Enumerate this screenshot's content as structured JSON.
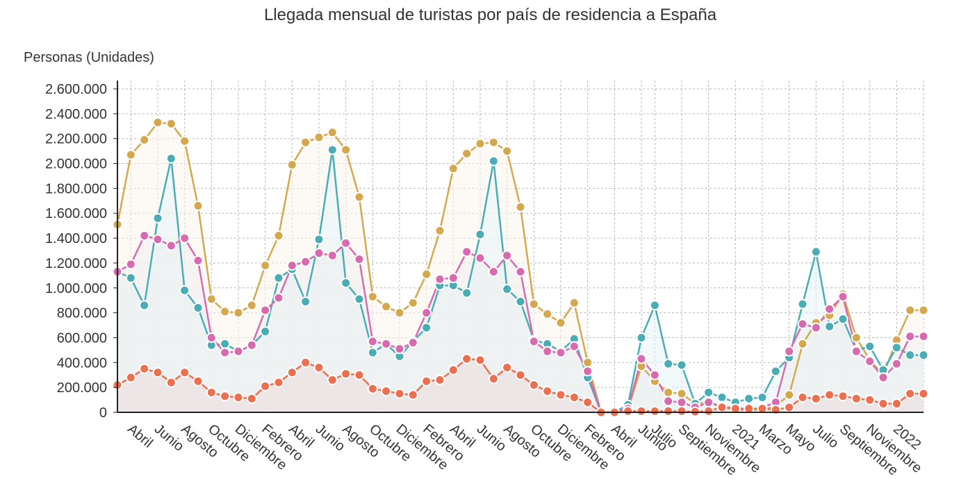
{
  "chart_data": {
    "type": "line",
    "title": "Llegada mensual de turistas por país de residencia a España",
    "ylabel": "Personas (Unidades)",
    "ylim": [
      0,
      2600000
    ],
    "yticks": [
      0,
      200000,
      400000,
      600000,
      800000,
      1000000,
      1200000,
      1400000,
      1600000,
      1800000,
      2000000,
      2200000,
      2400000,
      2600000
    ],
    "ytick_labels": [
      "0",
      "200.000",
      "400.000",
      "600.000",
      "800.000",
      "1.000.000",
      "1.200.000",
      "1.400.000",
      "1.600.000",
      "1.800.000",
      "2.000.000",
      "2.200.000",
      "2.400.000",
      "2.600.000"
    ],
    "x": [
      "2017-03",
      "2017-04",
      "2017-05",
      "2017-06",
      "2017-07",
      "2017-08",
      "2017-09",
      "2017-10",
      "2017-11",
      "2017-12",
      "2018-01",
      "2018-02",
      "2018-03",
      "2018-04",
      "2018-05",
      "2018-06",
      "2018-07",
      "2018-08",
      "2018-09",
      "2018-10",
      "2018-11",
      "2018-12",
      "2019-01",
      "2019-02",
      "2019-03",
      "2019-04",
      "2019-05",
      "2019-06",
      "2019-07",
      "2019-08",
      "2019-09",
      "2019-10",
      "2019-11",
      "2019-12",
      "2020-01",
      "2020-02",
      "2020-03",
      "2020-04",
      "2020-05",
      "2020-06",
      "2020-07",
      "2020-08",
      "2020-09",
      "2020-10",
      "2020-11",
      "2020-12",
      "2021-01",
      "2021-02",
      "2021-03",
      "2021-04",
      "2021-05",
      "2021-06",
      "2021-07",
      "2021-08",
      "2021-09",
      "2021-10",
      "2021-11",
      "2021-12",
      "2022-01",
      "2022-02",
      "2022-03"
    ],
    "xtick_labels": [
      {
        "x": "2017-04",
        "label": "Abril"
      },
      {
        "x": "2017-06",
        "label": "Junio"
      },
      {
        "x": "2017-08",
        "label": "Agosto"
      },
      {
        "x": "2017-10",
        "label": "Octubre"
      },
      {
        "x": "2017-12",
        "label": "Diciembre"
      },
      {
        "x": "2018-02",
        "label": "Febrero"
      },
      {
        "x": "2018-04",
        "label": "Abril"
      },
      {
        "x": "2018-06",
        "label": "Junio"
      },
      {
        "x": "2018-08",
        "label": "Agosto"
      },
      {
        "x": "2018-10",
        "label": "Octubre"
      },
      {
        "x": "2018-12",
        "label": "Diciembre"
      },
      {
        "x": "2019-02",
        "label": "Febrero"
      },
      {
        "x": "2019-04",
        "label": "Abril"
      },
      {
        "x": "2019-06",
        "label": "Junio"
      },
      {
        "x": "2019-08",
        "label": "Agosto"
      },
      {
        "x": "2019-10",
        "label": "Octubre"
      },
      {
        "x": "2019-12",
        "label": "Diciembre"
      },
      {
        "x": "2020-02",
        "label": "Febrero"
      },
      {
        "x": "2020-04",
        "label": "Abril"
      },
      {
        "x": "2020-06",
        "label": "Junio"
      },
      {
        "x": "2020-07",
        "label": "Julio"
      },
      {
        "x": "2020-09",
        "label": "Septiembre"
      },
      {
        "x": "2020-11",
        "label": "Noviembre"
      },
      {
        "x": "2021-01",
        "label": "2021"
      },
      {
        "x": "2021-03",
        "label": "Marzo"
      },
      {
        "x": "2021-05",
        "label": "Mayo"
      },
      {
        "x": "2021-07",
        "label": "Julio"
      },
      {
        "x": "2021-09",
        "label": "Septiembre"
      },
      {
        "x": "2021-11",
        "label": "Noviembre"
      },
      {
        "x": "2022-01",
        "label": "2022"
      }
    ],
    "grid": true,
    "legend": "none",
    "series": [
      {
        "color": "#d6a84e",
        "fill": "#fbf6ec",
        "values": [
          1510000,
          2070000,
          2190000,
          2330000,
          2320000,
          2180000,
          1660000,
          910000,
          810000,
          800000,
          860000,
          1180000,
          1420000,
          1990000,
          2170000,
          2210000,
          2250000,
          2110000,
          1730000,
          930000,
          850000,
          800000,
          880000,
          1110000,
          1460000,
          1960000,
          2080000,
          2160000,
          2170000,
          2100000,
          1650000,
          870000,
          790000,
          720000,
          880000,
          400000,
          0,
          0,
          20000,
          370000,
          250000,
          160000,
          150000,
          70000,
          80000,
          40000,
          20000,
          20000,
          20000,
          50000,
          140000,
          550000,
          720000,
          780000,
          950000,
          600000,
          420000,
          300000,
          580000,
          820000,
          820000
        ]
      },
      {
        "color": "#4aadb5",
        "fill": "#e6f4f5",
        "values": [
          1130000,
          1080000,
          860000,
          1560000,
          2040000,
          980000,
          840000,
          540000,
          550000,
          490000,
          540000,
          650000,
          1080000,
          1150000,
          890000,
          1390000,
          2110000,
          1040000,
          910000,
          480000,
          550000,
          450000,
          570000,
          680000,
          1020000,
          1020000,
          960000,
          1430000,
          2020000,
          990000,
          890000,
          580000,
          550000,
          490000,
          590000,
          280000,
          0,
          0,
          60000,
          600000,
          860000,
          390000,
          380000,
          70000,
          160000,
          120000,
          80000,
          110000,
          120000,
          330000,
          440000,
          870000,
          1290000,
          690000,
          750000,
          500000,
          530000,
          340000,
          520000,
          460000,
          460000
        ]
      },
      {
        "color": "#d86bb0",
        "fill": "#eeeeee",
        "values": [
          1130000,
          1190000,
          1420000,
          1390000,
          1340000,
          1400000,
          1220000,
          600000,
          480000,
          490000,
          540000,
          820000,
          920000,
          1180000,
          1210000,
          1280000,
          1260000,
          1360000,
          1230000,
          570000,
          550000,
          510000,
          560000,
          800000,
          1070000,
          1080000,
          1290000,
          1240000,
          1130000,
          1260000,
          1130000,
          570000,
          490000,
          480000,
          530000,
          330000,
          0,
          0,
          30000,
          430000,
          300000,
          90000,
          80000,
          40000,
          80000,
          50000,
          30000,
          20000,
          40000,
          80000,
          490000,
          710000,
          680000,
          830000,
          930000,
          490000,
          410000,
          280000,
          390000,
          610000,
          610000
        ]
      },
      {
        "color": "#ec7050",
        "fill": "#e9dcdc",
        "values": [
          220000,
          280000,
          350000,
          320000,
          240000,
          320000,
          250000,
          160000,
          130000,
          120000,
          110000,
          210000,
          240000,
          320000,
          400000,
          360000,
          260000,
          310000,
          300000,
          190000,
          170000,
          150000,
          140000,
          250000,
          260000,
          340000,
          430000,
          420000,
          270000,
          360000,
          300000,
          220000,
          170000,
          140000,
          120000,
          80000,
          0,
          0,
          10000,
          10000,
          10000,
          10000,
          10000,
          5000,
          10000,
          40000,
          30000,
          30000,
          30000,
          20000,
          40000,
          120000,
          110000,
          140000,
          130000,
          110000,
          100000,
          70000,
          70000,
          150000,
          150000
        ]
      }
    ]
  }
}
